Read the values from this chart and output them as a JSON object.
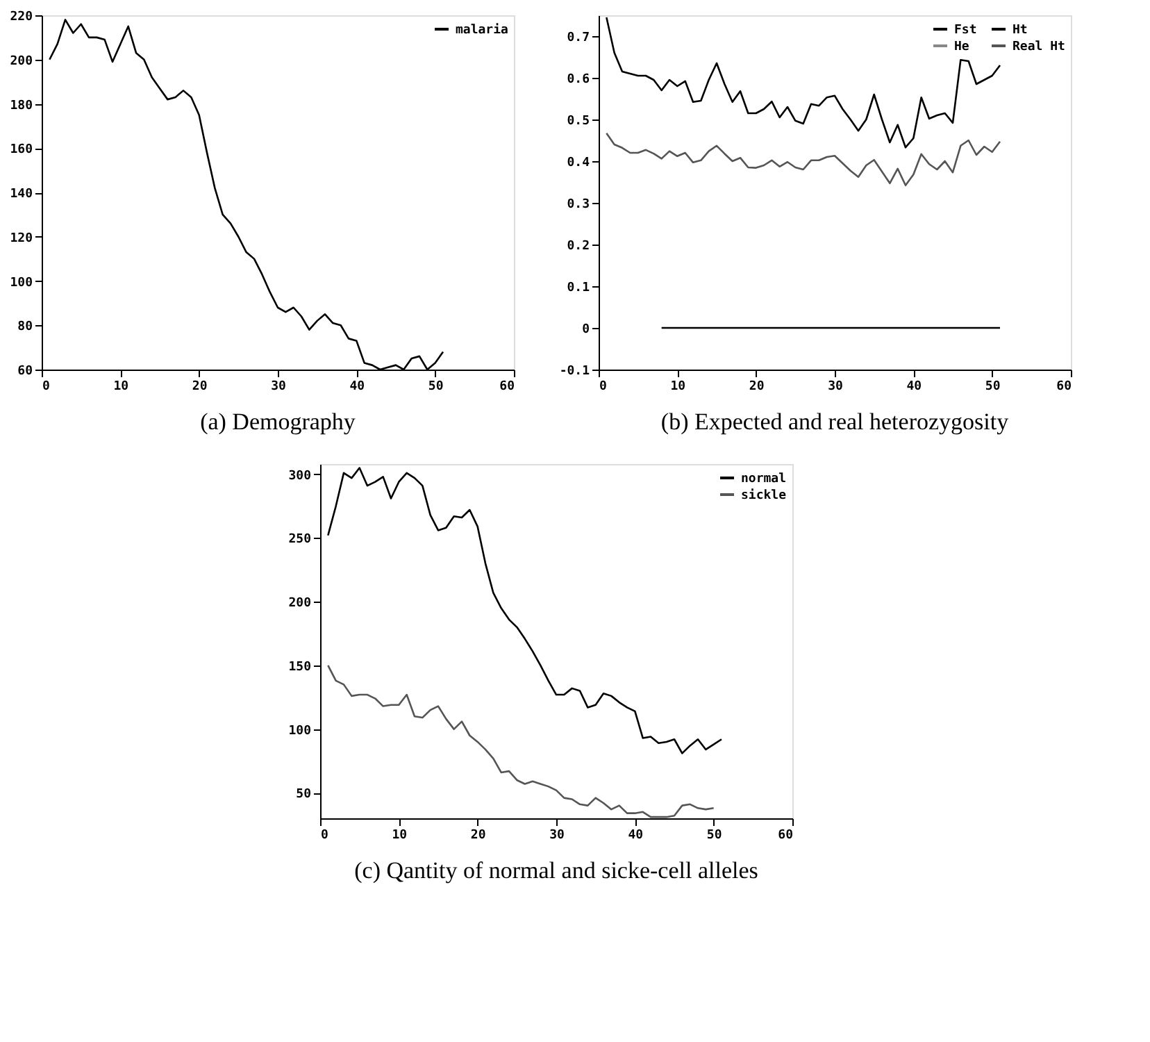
{
  "chart_data": [
    {
      "type": "line",
      "title": "(a) Demography",
      "x": [
        1,
        2,
        3,
        4,
        5,
        6,
        7,
        8,
        9,
        10,
        11,
        12,
        13,
        14,
        15,
        16,
        17,
        18,
        19,
        20,
        21,
        22,
        23,
        24,
        25,
        26,
        27,
        28,
        29,
        30,
        31,
        32,
        33,
        34,
        35,
        36,
        37,
        38,
        39,
        40,
        41,
        42,
        43,
        44,
        45,
        46,
        47,
        48,
        49,
        50,
        51
      ],
      "series": [
        {
          "name": "malaria",
          "color": "#000000",
          "values": [
            200,
            207,
            218,
            212,
            216,
            210,
            210,
            209,
            199,
            207,
            215,
            203,
            200,
            192,
            187,
            182,
            183,
            186,
            183,
            175,
            158,
            142,
            130,
            126,
            120,
            113,
            110,
            103,
            95,
            88,
            86,
            88,
            84,
            78,
            82,
            85,
            81,
            80,
            74,
            73,
            63,
            62,
            60,
            61,
            62,
            60,
            65,
            66,
            60,
            63,
            68
          ]
        }
      ],
      "xlim": [
        0,
        60
      ],
      "xticks": [
        0,
        10,
        20,
        30,
        40,
        50,
        60
      ],
      "ylim": [
        60,
        220
      ],
      "yticks": [
        60,
        80,
        100,
        120,
        140,
        160,
        180,
        200,
        220
      ],
      "legend": "top right",
      "grid": false
    },
    {
      "type": "line",
      "title": "(b) Expected and real heterozygosity",
      "x": [
        1,
        2,
        3,
        4,
        5,
        6,
        7,
        8,
        9,
        10,
        11,
        12,
        13,
        14,
        15,
        16,
        17,
        18,
        19,
        20,
        21,
        22,
        23,
        24,
        25,
        26,
        27,
        28,
        29,
        30,
        31,
        32,
        33,
        34,
        35,
        36,
        37,
        38,
        39,
        40,
        41,
        42,
        43,
        44,
        45,
        46,
        47,
        48,
        49,
        50,
        51
      ],
      "series": [
        {
          "name": "Fst",
          "color": "#000000",
          "x": [
            8,
            51
          ],
          "values": [
            0,
            0
          ]
        },
        {
          "name": "He",
          "color": "#888888",
          "values": [
            null,
            null,
            null,
            null,
            null,
            null,
            null,
            null,
            null,
            null,
            null,
            null,
            null,
            null,
            null,
            null,
            null,
            null,
            null,
            null,
            null,
            null,
            null,
            null,
            null,
            null,
            null,
            null,
            null,
            null,
            null,
            null,
            null,
            null,
            null,
            null,
            null,
            null,
            null,
            null,
            null,
            null,
            null,
            null,
            null,
            null,
            null,
            null,
            null,
            null,
            null
          ]
        },
        {
          "name": "Ht",
          "color": "#000000",
          "values": [
            0.745,
            0.66,
            0.615,
            0.61,
            0.605,
            0.605,
            0.595,
            0.57,
            0.595,
            0.58,
            0.592,
            0.542,
            0.545,
            0.595,
            0.635,
            0.585,
            0.542,
            0.568,
            0.515,
            0.515,
            0.525,
            0.543,
            0.505,
            0.53,
            0.497,
            0.49,
            0.537,
            0.533,
            0.553,
            0.557,
            0.525,
            0.5,
            0.473,
            0.5,
            0.56,
            0.5,
            0.445,
            0.487,
            0.433,
            0.455,
            0.553,
            0.502,
            0.51,
            0.515,
            0.492,
            0.643,
            0.64,
            0.585,
            0.595,
            0.605,
            0.63
          ]
        },
        {
          "name": "Real Ht",
          "color": "#555555",
          "values": [
            0.467,
            0.44,
            0.432,
            0.42,
            0.42,
            0.427,
            0.418,
            0.406,
            0.424,
            0.412,
            0.42,
            0.397,
            0.402,
            0.424,
            0.437,
            0.418,
            0.4,
            0.408,
            0.385,
            0.384,
            0.39,
            0.402,
            0.387,
            0.398,
            0.385,
            0.38,
            0.402,
            0.402,
            0.41,
            0.413,
            0.395,
            0.377,
            0.362,
            0.39,
            0.403,
            0.375,
            0.347,
            0.382,
            0.342,
            0.368,
            0.417,
            0.393,
            0.38,
            0.4,
            0.373,
            0.437,
            0.45,
            0.415,
            0.435,
            0.422,
            0.447
          ]
        }
      ],
      "xlim": [
        0,
        60
      ],
      "xticks": [
        0,
        10,
        20,
        30,
        40,
        50,
        60
      ],
      "ylim": [
        -0.1,
        0.75
      ],
      "yticks": [
        -0.1,
        0,
        0.1,
        0.2,
        0.3,
        0.4,
        0.5,
        0.6,
        0.7
      ],
      "legend": "top right",
      "grid": false
    },
    {
      "type": "line",
      "title": "(c) Qantity of normal and sicke-cell alleles",
      "x": [
        1,
        2,
        3,
        4,
        5,
        6,
        7,
        8,
        9,
        10,
        11,
        12,
        13,
        14,
        15,
        16,
        17,
        18,
        19,
        20,
        21,
        22,
        23,
        24,
        25,
        26,
        27,
        28,
        29,
        30,
        31,
        32,
        33,
        34,
        35,
        36,
        37,
        38,
        39,
        40,
        41,
        42,
        43,
        44,
        45,
        46,
        47,
        48,
        49,
        50,
        51
      ],
      "series": [
        {
          "name": "normal",
          "color": "#000000",
          "values": [
            252,
            275,
            301,
            297,
            305,
            291,
            294,
            298,
            281,
            294,
            301,
            297,
            291,
            268,
            256,
            258,
            267,
            266,
            272,
            259,
            230,
            207,
            195,
            186,
            180,
            171,
            161,
            150,
            138,
            127,
            127,
            132,
            130,
            117,
            119,
            128,
            126,
            121,
            117,
            114,
            93,
            94,
            89,
            90,
            92,
            81,
            87,
            92,
            84,
            88,
            92
          ]
        },
        {
          "name": "sickle",
          "color": "#555555",
          "values": [
            150,
            138,
            135,
            126,
            127,
            127,
            124,
            118,
            119,
            119,
            127,
            110,
            109,
            115,
            118,
            108,
            100,
            106,
            95,
            90,
            84,
            77,
            66,
            67,
            60,
            57,
            59,
            57,
            55,
            52,
            46,
            45,
            41,
            40,
            46,
            42,
            37,
            40,
            34,
            34,
            35,
            31,
            31,
            31,
            32,
            40,
            41,
            38,
            37,
            38,
            null
          ]
        }
      ],
      "xlim": [
        0,
        60
      ],
      "xticks": [
        0,
        10,
        20,
        30,
        40,
        50,
        60
      ],
      "ylim": [
        30,
        308
      ],
      "yticks": [
        50,
        100,
        150,
        200,
        250,
        300
      ],
      "legend": "top right",
      "grid": false
    }
  ]
}
